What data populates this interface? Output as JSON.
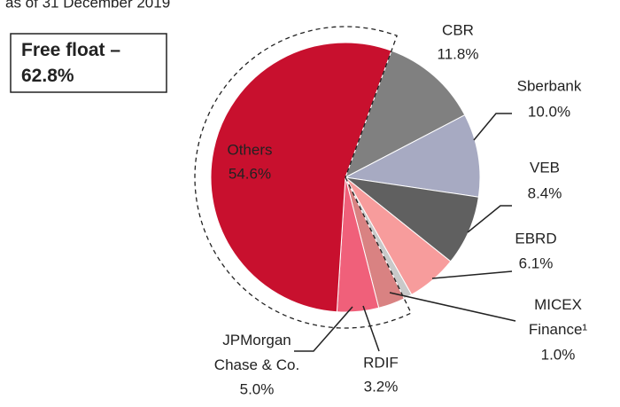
{
  "chart_data": {
    "type": "pie",
    "subtitle": "as of 31 December 2019",
    "annotation": "Free float – 62.8%",
    "categories": [
      "CBR",
      "Sberbank",
      "VEB",
      "EBRD",
      "MICEX Finance¹",
      "RDIF",
      "JPMorgan Chase & Co.",
      "Others"
    ],
    "values": [
      11.8,
      10.0,
      8.4,
      6.1,
      1.0,
      3.2,
      5.0,
      54.6
    ],
    "value_labels": [
      "11.8%",
      "10.0%",
      "8.4%",
      "6.1%",
      "1.0%",
      "3.2%",
      "5.0%",
      "54.6%"
    ],
    "colors": [
      "#808080",
      "#a7aac2",
      "#606060",
      "#f79c9c",
      "#c9c9c9",
      "#d98282",
      "#f0607a",
      "#c8102e"
    ],
    "start_angle": 20
  }
}
